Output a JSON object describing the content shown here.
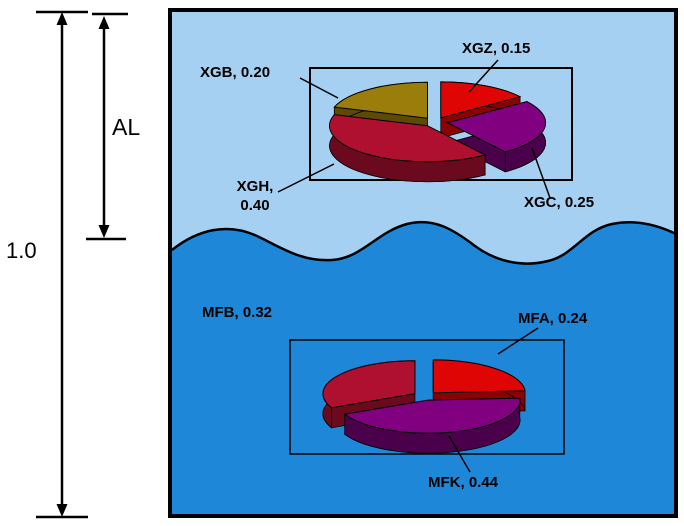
{
  "gauge": {
    "total_label": "1.0",
    "al_label": "AL"
  },
  "colors": {
    "water_upper": "#a6d0f2",
    "water_lower": "#1e87d8",
    "outline": "#000000"
  },
  "chart_data": [
    {
      "type": "pie",
      "style": "3d-exploded",
      "start_angle_deg": 0,
      "direction": "clockwise",
      "slices": [
        {
          "label": "XGZ",
          "value": 0.15,
          "color": "#e00505",
          "side_color": "#8a0202",
          "callout": "XGZ, 0.15"
        },
        {
          "label": "XGC",
          "value": 0.25,
          "color": "#800080",
          "side_color": "#4a004a",
          "callout": "XGC, 0.25"
        },
        {
          "label": "XGH",
          "value": 0.4,
          "color": "#b01030",
          "side_color": "#6b0a1e",
          "callout": "XGH,\n0.40"
        },
        {
          "label": "XGB",
          "value": 0.2,
          "color": "#9a7d0a",
          "side_color": "#5c4a05",
          "callout": "XGB, 0.20"
        }
      ]
    },
    {
      "type": "pie",
      "style": "3d-exploded",
      "start_angle_deg": 0,
      "direction": "clockwise",
      "slices": [
        {
          "label": "MFA",
          "value": 0.24,
          "color": "#e00505",
          "side_color": "#8a0202",
          "callout": "MFA, 0.24"
        },
        {
          "label": "MFK",
          "value": 0.44,
          "color": "#800080",
          "side_color": "#4a004a",
          "callout": "MFK, 0.44"
        },
        {
          "label": "MFB",
          "value": 0.32,
          "color": "#b01030",
          "side_color": "#6b0a1e",
          "callout": "MFB, 0.32"
        }
      ]
    }
  ]
}
